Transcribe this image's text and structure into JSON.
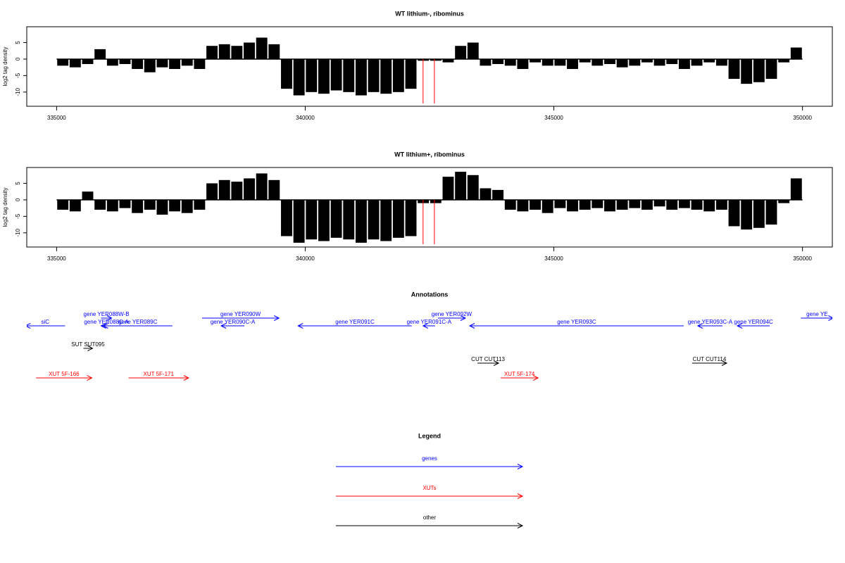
{
  "chart_data": [
    {
      "type": "bar",
      "title": "WT lithium-, ribominus",
      "ylabel": "log2 tag density",
      "color": "#000000",
      "xlim": [
        334400,
        350600
      ],
      "ylim": [
        -14.3,
        9.8
      ],
      "xticks": [
        335000,
        340000,
        345000,
        350000
      ],
      "yticks": [
        -10,
        -5,
        0,
        5
      ],
      "x": [
        335125,
        335375,
        335625,
        335875,
        336125,
        336375,
        336625,
        336875,
        337125,
        337375,
        337625,
        337875,
        338125,
        338375,
        338625,
        338875,
        339125,
        339375,
        339625,
        339875,
        340125,
        340375,
        340625,
        340875,
        341125,
        341375,
        341625,
        341875,
        342125,
        342375,
        342625,
        342875,
        343125,
        343375,
        343625,
        343875,
        344125,
        344375,
        344625,
        344875,
        345125,
        345375,
        345625,
        345875,
        346125,
        346375,
        346625,
        346875,
        347125,
        347375,
        347625,
        347875,
        348125,
        348375,
        348625,
        348875,
        349125,
        349375,
        349625,
        349875
      ],
      "values": [
        -2,
        -2.5,
        -1.5,
        3,
        -2,
        -1.5,
        -3,
        -4,
        -2.5,
        -3,
        -2,
        -3,
        4,
        4.5,
        4,
        5,
        6.5,
        4.5,
        -9,
        -11,
        -10,
        -10.5,
        -9.5,
        -10,
        -11,
        -10,
        -10.5,
        -10,
        -9,
        -0.5,
        -0.5,
        -1,
        4,
        5,
        -2,
        -1.5,
        -2,
        -3,
        -1,
        -2,
        -2,
        -3,
        -1,
        -2,
        -1.5,
        -2.5,
        -2,
        -1,
        -2,
        -1.5,
        -3,
        -2,
        -1,
        -2,
        -6,
        -7.5,
        -7,
        -6,
        -1,
        3.5
      ],
      "markers": [
        {
          "x": 342370,
          "color": "#ff0000"
        },
        {
          "x": 342597,
          "color": "#ff0000"
        }
      ]
    },
    {
      "type": "bar",
      "title": "WT lithium+, ribominus",
      "ylabel": "log2 tag density",
      "color": "#000000",
      "xlim": [
        334400,
        350600
      ],
      "ylim": [
        -14.3,
        9.8
      ],
      "xticks": [
        335000,
        340000,
        345000,
        350000
      ],
      "yticks": [
        -10,
        -5,
        0,
        5
      ],
      "x": [
        335125,
        335375,
        335625,
        335875,
        336125,
        336375,
        336625,
        336875,
        337125,
        337375,
        337625,
        337875,
        338125,
        338375,
        338625,
        338875,
        339125,
        339375,
        339625,
        339875,
        340125,
        340375,
        340625,
        340875,
        341125,
        341375,
        341625,
        341875,
        342125,
        342375,
        342625,
        342875,
        343125,
        343375,
        343625,
        343875,
        344125,
        344375,
        344625,
        344875,
        345125,
        345375,
        345625,
        345875,
        346125,
        346375,
        346625,
        346875,
        347125,
        347375,
        347625,
        347875,
        348125,
        348375,
        348625,
        348875,
        349125,
        349375,
        349625,
        349875
      ],
      "values": [
        -3,
        -3.5,
        2.5,
        -3,
        -3.5,
        -2.5,
        -4,
        -3,
        -4.5,
        -3.5,
        -4,
        -3,
        5,
        6,
        5.5,
        6.5,
        8,
        6,
        -11,
        -13,
        -12,
        -12.5,
        -11.5,
        -12,
        -13,
        -12,
        -12.5,
        -11.5,
        -11,
        -1,
        -1,
        7,
        8.5,
        7.5,
        3.5,
        3,
        -3,
        -3.5,
        -3,
        -4,
        -2.5,
        -3.5,
        -3,
        -2.5,
        -3.5,
        -3,
        -2.5,
        -3,
        -2,
        -3,
        -2.5,
        -3,
        -3.5,
        -3,
        -8,
        -9,
        -8.5,
        -7.5,
        -1,
        6.5
      ],
      "markers": [
        {
          "x": 342370,
          "color": "#ff0000"
        },
        {
          "x": 342597,
          "color": "#ff0000"
        }
      ]
    }
  ],
  "annotations": {
    "title": "Annotations",
    "tracks": [
      {
        "features": [
          {
            "label": "gene YER088W-B",
            "start": 335895,
            "end": 336108,
            "strand": "+",
            "color": "#0000ff"
          },
          {
            "label": "gene YER090W",
            "start": 337925,
            "end": 339473,
            "strand": "+",
            "color": "#0000ff"
          },
          {
            "label": "gene YER092W",
            "start": 342668,
            "end": 343222,
            "strand": "+",
            "color": "#0000ff"
          },
          {
            "label": "gene YE",
            "start": 349967,
            "end": 350620,
            "strand": "+",
            "color": "#0000ff"
          }
        ]
      },
      {
        "features": [
          {
            "label": "siC",
            "start": 334375,
            "end": 335170,
            "strand": "-",
            "color": "#0000ff"
          },
          {
            "label": "gene YER088C-A",
            "start": 335895,
            "end": 336108,
            "strand": "-",
            "color": "#0000ff"
          },
          {
            "label": "gene YER089C",
            "start": 335937,
            "end": 337329,
            "strand": "-",
            "color": "#0000ff"
          },
          {
            "label": "gene YER090C-A",
            "start": 338309,
            "end": 338777,
            "strand": "-",
            "color": "#0000ff"
          },
          {
            "label": "gene YER091C",
            "start": 339856,
            "end": 342143,
            "strand": "-",
            "color": "#0000ff"
          },
          {
            "label": "gene YER091C-A",
            "start": 342370,
            "end": 342611,
            "strand": "-",
            "color": "#0000ff"
          },
          {
            "label": "gene YER093C",
            "start": 343307,
            "end": 347610,
            "strand": "-",
            "color": "#0000ff"
          },
          {
            "label": "gene YER093C-A",
            "start": 347894,
            "end": 348391,
            "strand": "-",
            "color": "#0000ff"
          },
          {
            "label": "gene YER094C",
            "start": 348689,
            "end": 349342,
            "strand": "-",
            "color": "#0000ff"
          }
        ]
      },
      {
        "features": [
          {
            "label": "SUT SUT095",
            "start": 335540,
            "end": 335724,
            "strand": "+",
            "color": "#000000"
          }
        ]
      },
      {
        "features": [
          {
            "label": "CUT CUT113",
            "start": 343463,
            "end": 343889,
            "strand": "+",
            "color": "#000000"
          },
          {
            "label": "CUT CUT114",
            "start": 347780,
            "end": 348476,
            "strand": "+",
            "color": "#000000"
          }
        ]
      },
      {
        "features": [
          {
            "label": "XUT 5F-166",
            "start": 334588,
            "end": 335710,
            "strand": "+",
            "color": "#ff0000"
          },
          {
            "label": "XUT 5F-171",
            "start": 336448,
            "end": 337655,
            "strand": "+",
            "color": "#ff0000"
          },
          {
            "label": "XUT 5F-174",
            "start": 343932,
            "end": 344684,
            "strand": "+",
            "color": "#ff0000"
          }
        ]
      }
    ]
  },
  "legend": {
    "title": "Legend",
    "entries": [
      {
        "label": "genes",
        "color": "#0000ff"
      },
      {
        "label": "XUTs",
        "color": "#ff0000"
      },
      {
        "label": "other",
        "color": "#000000"
      }
    ]
  }
}
